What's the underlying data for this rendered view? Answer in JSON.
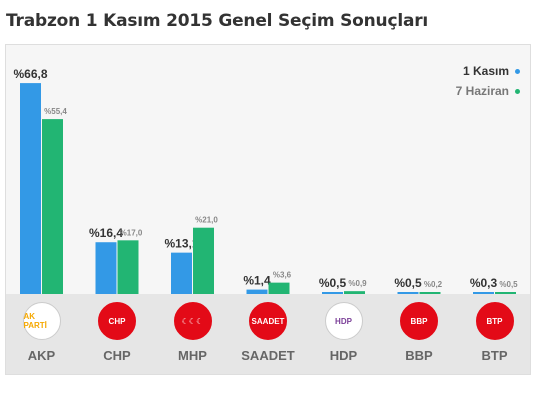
{
  "page_title": "Trabzon 1 Kasım 2015 Genel Seçim Sonuçları",
  "legend": {
    "current": {
      "label": "1 Kasım",
      "color": "#3399e6"
    },
    "previous": {
      "label": "7 Haziran",
      "color": "#22b573"
    }
  },
  "chart_data": {
    "type": "bar",
    "title": "Trabzon 1 Kasım 2015 Genel Seçim Sonuçları",
    "categories": [
      "AKP",
      "CHP",
      "MHP",
      "SAADET",
      "HDP",
      "BBP",
      "BTP"
    ],
    "series": [
      {
        "name": "1 Kasım",
        "values": [
          66.8,
          16.4,
          13.1,
          1.4,
          0.5,
          0.5,
          0.3
        ],
        "labels": [
          "%66,8",
          "%16,4",
          "%13,1",
          "%1,4",
          "%0,5",
          "%0,5",
          "%0,3"
        ]
      },
      {
        "name": "7 Haziran",
        "values": [
          55.4,
          17.0,
          21.0,
          3.6,
          0.9,
          0.2,
          0.5
        ],
        "labels": [
          "%55,4",
          "%17,0",
          "%21,0",
          "%3,6",
          "%0,9",
          "%0,2",
          "%0,5"
        ]
      }
    ],
    "ylim": [
      0,
      70
    ],
    "grid": false,
    "legend_position": "top-right"
  },
  "parties": [
    {
      "name": "AKP",
      "logo_text": "AK PARTİ",
      "icon": "akp-bulb-logo-icon",
      "bg": "#ffffff",
      "fg": "#f5a800"
    },
    {
      "name": "CHP",
      "logo_text": "CHP",
      "icon": "chp-logo-icon",
      "bg": "#e30a17",
      "fg": "#ffffff"
    },
    {
      "name": "MHP",
      "logo_text": "☾☾☾",
      "icon": "mhp-logo-icon",
      "bg": "#e30a17",
      "fg": "#ffffff"
    },
    {
      "name": "SAADET",
      "logo_text": "SAADET",
      "icon": "saadet-logo-icon",
      "bg": "#e30a17",
      "fg": "#ffffff"
    },
    {
      "name": "HDP",
      "logo_text": "HDP",
      "icon": "hdp-tree-logo-icon",
      "bg": "#ffffff",
      "fg": "#7b3f98"
    },
    {
      "name": "BBP",
      "logo_text": "BBP",
      "icon": "bbp-logo-icon",
      "bg": "#e30a17",
      "fg": "#ffffff"
    },
    {
      "name": "BTP",
      "logo_text": "BTP",
      "icon": "btp-logo-icon",
      "bg": "#e30a17",
      "fg": "#ffffff"
    }
  ]
}
